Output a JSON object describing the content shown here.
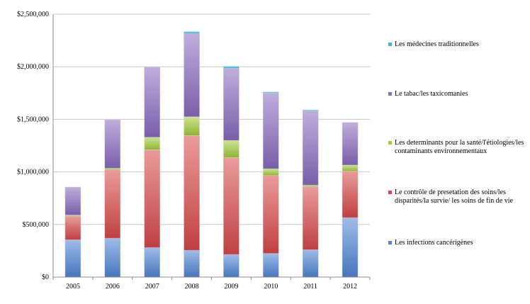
{
  "chart_data": {
    "type": "bar",
    "stacked": true,
    "categories": [
      "2005",
      "2006",
      "2007",
      "2008",
      "2009",
      "2010",
      "2011",
      "2012"
    ],
    "ylim": [
      0,
      2500000
    ],
    "yticks": [
      0,
      500000,
      1000000,
      1500000,
      2000000,
      2500000
    ],
    "ytick_labels": [
      "$0",
      "$500,000",
      "$1,000,000",
      "$1,500,000",
      "$2,000,000",
      "$2,500,000"
    ],
    "grid": true,
    "legend_position": "right",
    "series": [
      {
        "name": "Les infections cancérigènes",
        "color": "#4F86D6",
        "values": [
          355000,
          370000,
          280000,
          255000,
          215000,
          225000,
          260000,
          565000
        ]
      },
      {
        "name": "Le contrôle de presetation des soins/les disparités/la survie/ les soins de fin de vie",
        "color": "#D9494A",
        "values": [
          225000,
          650000,
          930000,
          1090000,
          920000,
          740000,
          600000,
          440000
        ]
      },
      {
        "name": "Les determinants pour la santé/l'étiologies/les contaminants environnementaux",
        "color": "#A2CD3D",
        "values": [
          10000,
          15000,
          120000,
          180000,
          165000,
          65000,
          15000,
          60000
        ]
      },
      {
        "name": "Le tabac/les taxicomanies",
        "color": "#8A6BC0",
        "values": [
          265000,
          460000,
          665000,
          790000,
          685000,
          720000,
          705000,
          405000
        ]
      },
      {
        "name": "Les médecines traditionnelles",
        "color": "#3FB8E0",
        "values": [
          0,
          0,
          0,
          20000,
          20000,
          10000,
          10000,
          0
        ]
      }
    ]
  }
}
